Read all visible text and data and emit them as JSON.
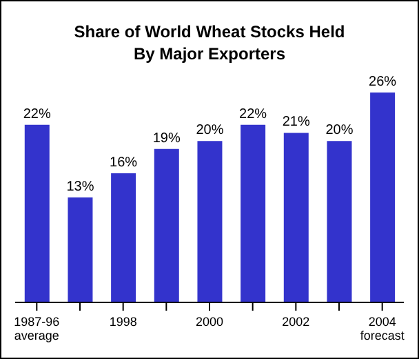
{
  "chart_data": {
    "type": "bar",
    "title": "Share of World Wheat Stocks Held By Major Exporters",
    "categories": [
      "1987-96 average",
      null,
      "1998",
      null,
      "2000",
      null,
      "2002",
      null,
      "2004 forecast"
    ],
    "values": [
      22,
      13,
      16,
      19,
      20,
      22,
      21,
      20,
      26
    ],
    "value_labels": [
      "22%",
      "13%",
      "16%",
      "19%",
      "20%",
      "22%",
      "21%",
      "20%",
      "26%"
    ],
    "color": "#3333cc"
  }
}
